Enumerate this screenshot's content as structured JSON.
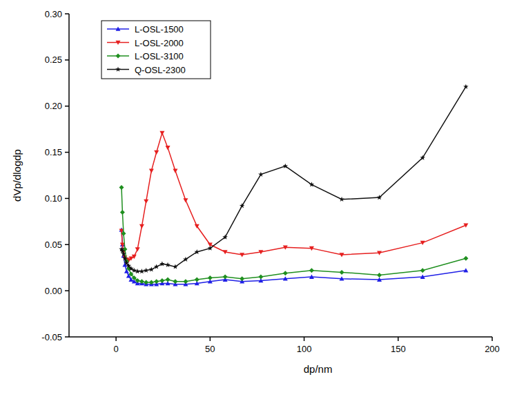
{
  "chart_data": {
    "type": "line",
    "x_label": "dp/nm",
    "y_label": "dVp/dlogdp",
    "x": [
      2.9,
      3.4,
      4.0,
      4.7,
      5.6,
      6.7,
      8.0,
      9.6,
      11.4,
      13.7,
      16.0,
      18.8,
      21.5,
      24.5,
      27.5,
      31.5,
      37,
      43,
      50,
      58,
      67,
      77,
      90,
      104,
      120,
      140,
      163,
      186
    ],
    "series": [
      {
        "name": "L-OSL-1500",
        "color": "#1f1fe6",
        "marker": "triangle-up",
        "values": [
          0.066,
          0.05,
          0.038,
          0.028,
          0.021,
          0.016,
          0.012,
          0.01,
          0.008,
          0.008,
          0.007,
          0.007,
          0.007,
          0.008,
          0.008,
          0.007,
          0.007,
          0.008,
          0.01,
          0.012,
          0.01,
          0.011,
          0.013,
          0.015,
          0.013,
          0.012,
          0.015,
          0.022
        ]
      },
      {
        "name": "L-OSL-2000",
        "color": "#e61f1f",
        "marker": "triangle-down",
        "values": [
          0.065,
          0.05,
          0.042,
          0.036,
          0.034,
          0.033,
          0.035,
          0.037,
          0.045,
          0.07,
          0.097,
          0.13,
          0.15,
          0.171,
          0.155,
          0.13,
          0.098,
          0.07,
          0.05,
          0.042,
          0.039,
          0.042,
          0.047,
          0.046,
          0.039,
          0.041,
          0.052,
          0.071
        ]
      },
      {
        "name": "L-OSL-3100",
        "color": "#1f8f1f",
        "marker": "diamond",
        "values": [
          0.112,
          0.085,
          0.062,
          0.045,
          0.032,
          0.024,
          0.018,
          0.014,
          0.011,
          0.01,
          0.009,
          0.009,
          0.01,
          0.011,
          0.012,
          0.01,
          0.01,
          0.012,
          0.014,
          0.015,
          0.013,
          0.015,
          0.019,
          0.022,
          0.02,
          0.017,
          0.022,
          0.035
        ]
      },
      {
        "name": "Q-OSL-2300",
        "color": "#111111",
        "marker": "star",
        "values": [
          0.045,
          0.043,
          0.04,
          0.035,
          0.03,
          0.027,
          0.024,
          0.022,
          0.021,
          0.021,
          0.022,
          0.023,
          0.026,
          0.029,
          0.028,
          0.026,
          0.034,
          0.042,
          0.046,
          0.058,
          0.092,
          0.126,
          0.135,
          0.115,
          0.099,
          0.101,
          0.144,
          0.221
        ]
      }
    ],
    "xlim": [
      -25,
      200
    ],
    "xticks": [
      0,
      50,
      100,
      150,
      200
    ],
    "ylim": [
      -0.05,
      0.3
    ],
    "yticks": [
      {
        "value": -0.05,
        "label": "-0.05"
      },
      {
        "value": 0,
        "label": "0.00"
      },
      {
        "value": 0.05,
        "label": "0.05"
      },
      {
        "value": 0.1,
        "label": "0.10"
      },
      {
        "value": 0.15,
        "label": "0.15"
      },
      {
        "value": 0.2,
        "label": "0.20"
      },
      {
        "value": 0.25,
        "label": "0.25"
      },
      {
        "value": 0.3,
        "label": "0.30"
      }
    ],
    "grid": false,
    "legend": "upper-left"
  }
}
